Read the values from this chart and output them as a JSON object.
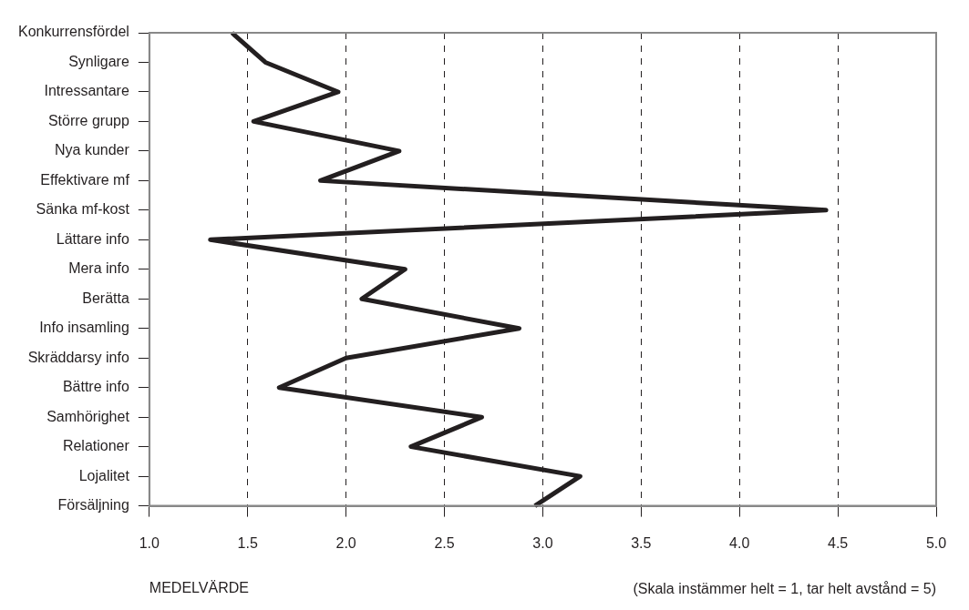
{
  "chart_data": {
    "type": "line",
    "orientation": "horizontal",
    "xlabel": "MEDELVÄRDE",
    "annotations": [
      "(Skala instämmer helt = 1, tar helt avstånd = 5)"
    ],
    "categories": [
      "Konkurrensfördel",
      "Synligare",
      "Intressantare",
      "Större grupp",
      "Nya kunder",
      "Effektivare mf",
      "Sänka mf-kost",
      "Lättare info",
      "Mera info",
      "Berätta",
      "Info insamling",
      "Skräddarsy info",
      "Bättre info",
      "Samhörighet",
      "Relationer",
      "Lojalitet",
      "Försäljning"
    ],
    "series": [
      {
        "color": "#231f20",
        "values": [
          1.42,
          1.59,
          1.96,
          1.53,
          2.27,
          1.87,
          4.44,
          1.31,
          2.3,
          2.08,
          2.88,
          2.0,
          1.66,
          2.69,
          2.33,
          3.19,
          2.96
        ]
      }
    ],
    "xlim": [
      1.0,
      5.0
    ],
    "xticks": [
      {
        "value": 1,
        "label": "1.0"
      },
      {
        "value": 1.5,
        "label": "1.5"
      },
      {
        "value": 2,
        "label": "2.0"
      },
      {
        "value": 2.5,
        "label": "2.5"
      },
      {
        "value": 3,
        "label": "3.0"
      },
      {
        "value": 3.5,
        "label": "3.5"
      },
      {
        "value": 4,
        "label": "4.0"
      },
      {
        "value": 4.5,
        "label": "4.5"
      },
      {
        "value": 5,
        "label": "5.0"
      }
    ],
    "grid": "x",
    "line_style": "solid",
    "marker": "none",
    "legend": false
  }
}
